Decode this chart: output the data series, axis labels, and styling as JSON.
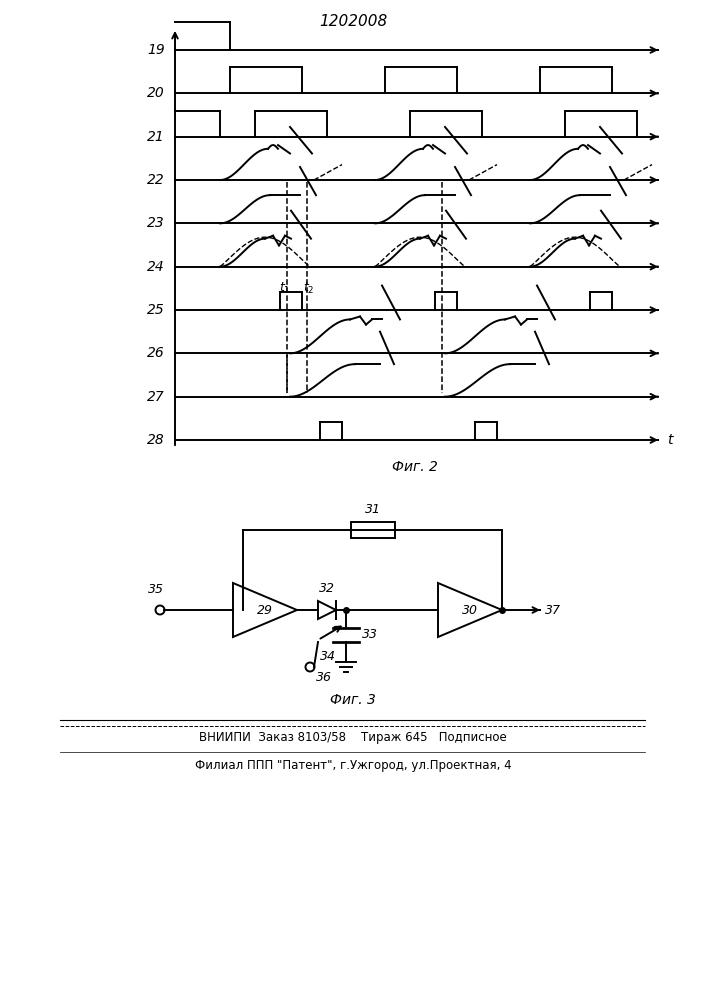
{
  "title": "1202008",
  "fig2_label": "Фиг. 2",
  "fig3_label": "Фиг. 3",
  "bottom_text1": "ВНИИПИ  Заказ 8103/58    Тираж 645   Подписное",
  "bottom_text2": "Филиал ППП \"Патент\", г.Ужгород, ул.Проектная, 4",
  "labels": [
    "19",
    "20",
    "21",
    "22",
    "23",
    "24",
    "25",
    "26",
    "27",
    "28"
  ],
  "bg_color": "#ffffff",
  "line_color": "#000000"
}
